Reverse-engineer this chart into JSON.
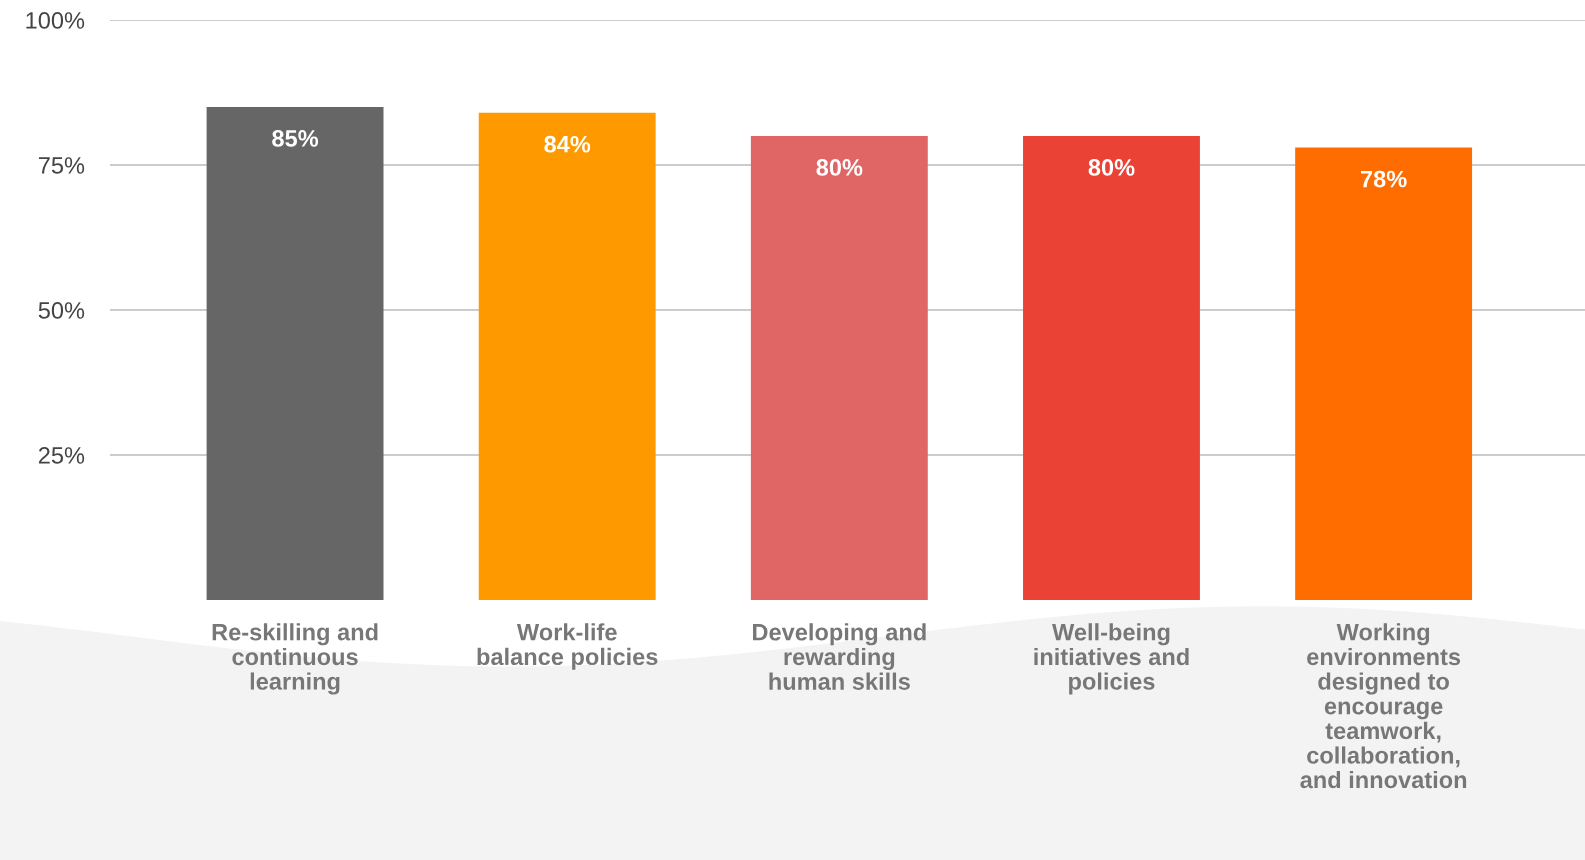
{
  "chart_data": {
    "type": "bar",
    "categories": [
      "Re-skilling and\ncontinuous\nlearning",
      "Work-life\nbalance policies",
      "Developing and\nrewarding\nhuman skills",
      "Well-being\ninitiatives and\npolicies",
      "Working\nenvironments\ndesigned to\nencourage\nteamwork,\ncollaboration,\nand innovation"
    ],
    "values": [
      85,
      84,
      80,
      80,
      78
    ],
    "colors": [
      "#666666",
      "#ff9900",
      "#e06666",
      "#ea4335",
      "#ff6d00"
    ],
    "value_labels": [
      "85%",
      "84%",
      "80%",
      "80%",
      "78%"
    ],
    "ylim": [
      0,
      100
    ],
    "yticks": [
      {
        "value": 25,
        "label": "25%"
      },
      {
        "value": 50,
        "label": "50%"
      },
      {
        "value": 75,
        "label": "75%"
      },
      {
        "value": 100,
        "label": "100%"
      }
    ],
    "grid": "y"
  }
}
